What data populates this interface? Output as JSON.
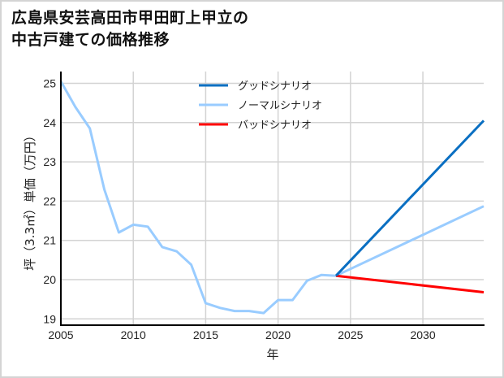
{
  "chart_data": {
    "type": "line",
    "title": "広島県安芸高田市甲田町上甲立の\n中古戸建ての価格推移",
    "xlabel": "年",
    "ylabel": "坪（3.3㎡）単価（万円）",
    "xlim": [
      2005,
      2034.2
    ],
    "ylim": [
      18.9,
      25.3
    ],
    "xticks": [
      2005,
      2010,
      2015,
      2020,
      2025,
      2030
    ],
    "yticks": [
      19,
      20,
      21,
      22,
      23,
      24,
      25
    ],
    "grid": true,
    "legend_position": "upper center",
    "series": [
      {
        "name": "グッドシナリオ",
        "color": "#0a6fc2",
        "x": [
          2024,
          2034.2
        ],
        "values": [
          20.1,
          24.05
        ]
      },
      {
        "name": "ノーマルシナリオ",
        "color": "#99ccff",
        "x": [
          2005,
          2006,
          2007,
          2008,
          2009,
          2010,
          2011,
          2012,
          2013,
          2014,
          2015,
          2016,
          2017,
          2018,
          2019,
          2020,
          2021,
          2022,
          2023,
          2024,
          2034.2
        ],
        "values": [
          25.05,
          24.4,
          23.85,
          22.3,
          21.2,
          21.4,
          21.35,
          20.83,
          20.72,
          20.38,
          19.4,
          19.28,
          19.2,
          19.2,
          19.15,
          19.48,
          19.48,
          19.97,
          20.12,
          20.1,
          21.87
        ]
      },
      {
        "name": "バッドシナリオ",
        "color": "#ff0000",
        "x": [
          2024,
          2034.2
        ],
        "values": [
          20.1,
          19.68
        ]
      }
    ]
  }
}
